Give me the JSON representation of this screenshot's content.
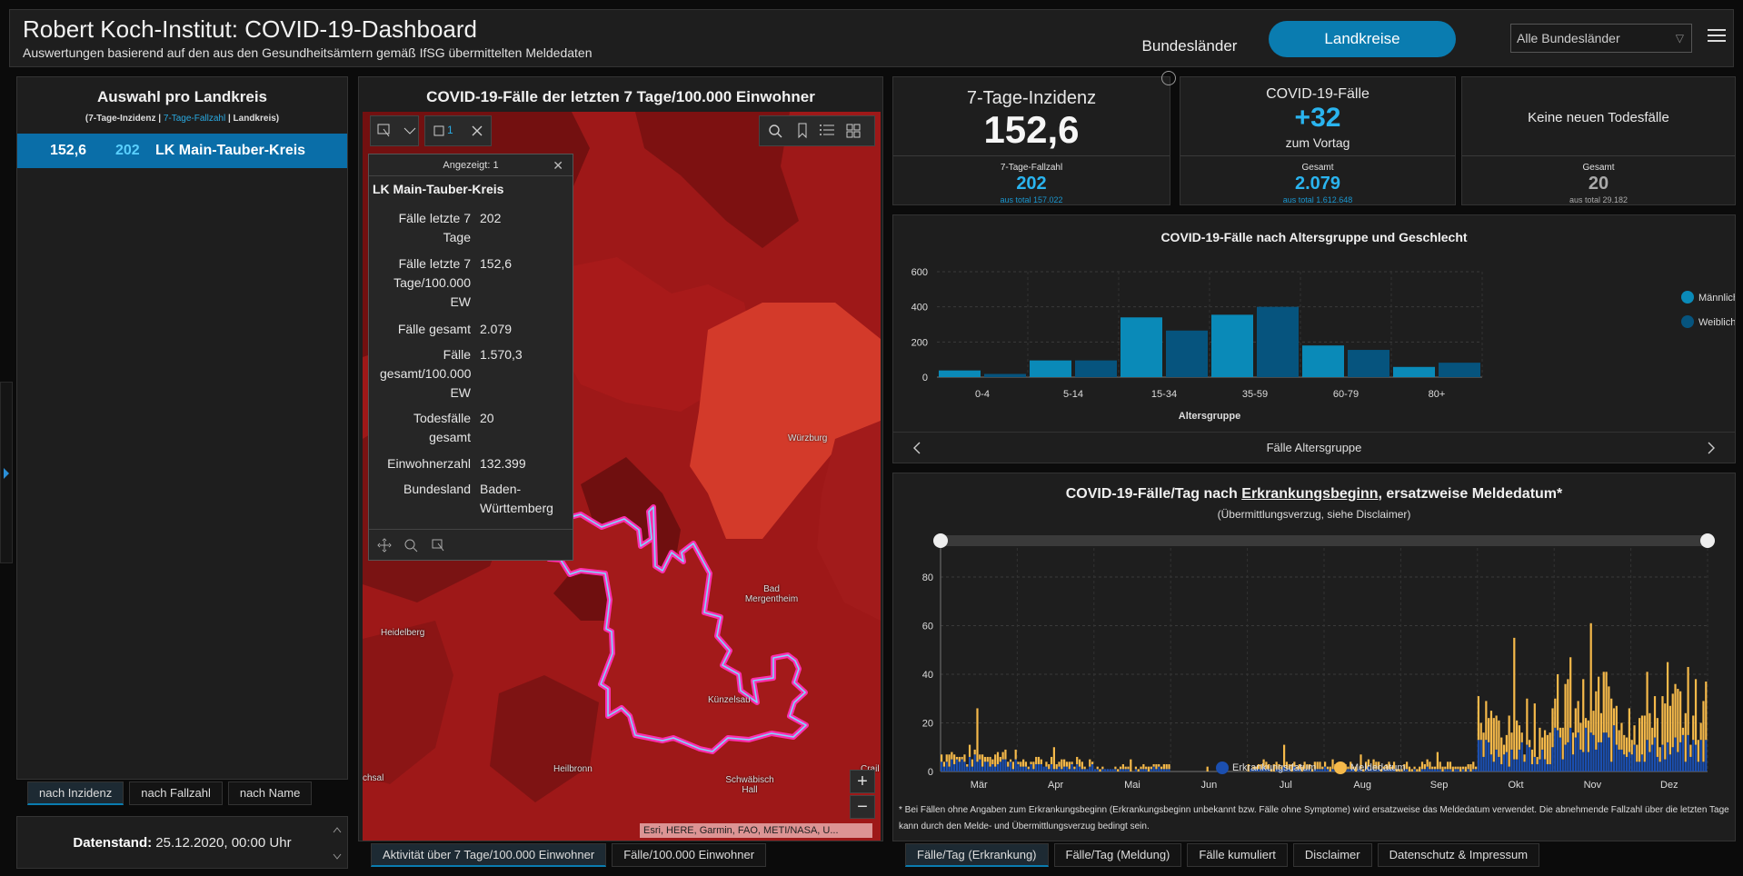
{
  "header": {
    "title": "Robert Koch-Institut: COVID-19-Dashboard",
    "subtitle": "Auswertungen basierend auf den aus den Gesundheitsämtern gemäß IfSG übermittelten Meldedaten",
    "btn_bundeslaender": "Bundesländer",
    "btn_landkreise": "Landkreise",
    "select_value": "Alle Bundesländer"
  },
  "left": {
    "title": "Auswahl pro Landkreis",
    "legend_a": "(7-Tage-Inzidenz | ",
    "legend_b": "7-Tage-Fallzahl",
    "legend_c": " | Landkreis)",
    "row": {
      "inzidenz": "152,6",
      "fallzahl": "202",
      "name": "LK Main-Tauber-Kreis"
    },
    "sort_tabs": [
      "nach Inzidenz",
      "nach Fallzahl",
      "nach Name"
    ],
    "datenstand_label": "Datenstand:",
    "datenstand_value": "25.12.2020, 00:00 Uhr"
  },
  "map": {
    "title": "COVID-19-Fälle der letzten 7 Tage/100.000 Einwohner",
    "selection_count": "1",
    "labels": {
      "wuerzburg": "Würzburg",
      "bad_mergentheim": "Bad Mergentheim",
      "heidelberg": "Heidelberg",
      "kuenzelsau": "Künzelsau",
      "heilbronn": "Heilbronn",
      "schwaebisch_hall": "Schwäbisch Hall",
      "crail": "Crail",
      "chsal": "chsal"
    },
    "attribution": "Esri, HERE, Garmin, FAO, METI/NASA, U...",
    "tabs": [
      "Aktivität über 7 Tage/100.000 Einwohner",
      "Fälle/100.000 Einwohner"
    ],
    "colors": {
      "dark": "#7a1010",
      "mid": "#9a1717",
      "light": "#c42a1e",
      "highlight": "#d8382a",
      "outline": "#ff2fb0"
    }
  },
  "popup": {
    "header": "Angezeigt: 1",
    "name": "LK Main-Tauber-Kreis",
    "rows": [
      {
        "k1": "Fälle letzte 7",
        "k2": "Tage",
        "v": "202"
      },
      {
        "k1": "Fälle letzte 7",
        "k2": "Tage/100.000",
        "k3": "EW",
        "v": "152,6"
      },
      {
        "k1": "Fälle gesamt",
        "v": "2.079"
      },
      {
        "k1": "Fälle",
        "k2": "gesamt/100.000",
        "k3": "EW",
        "v": "1.570,3"
      },
      {
        "k1": "Todesfälle",
        "k2": "gesamt",
        "v": "20"
      },
      {
        "k1": "Einwohnerzahl",
        "v": "132.399"
      },
      {
        "k1": "Bundesland",
        "v": "Baden-",
        "v2": "Württemberg"
      }
    ]
  },
  "kpi": {
    "inzidenz": {
      "title": "7-Tage-Inzidenz",
      "value": "152,6",
      "sub_label": "7-Tage-Fallzahl",
      "sub_value": "202",
      "sub_total": "aus total 157.022"
    },
    "faelle": {
      "title": "COVID-19-Fälle",
      "value": "+32",
      "suffix": "zum Vortag",
      "sub_label": "Gesamt",
      "sub_value": "2.079",
      "sub_total": "aus total 1.612.648"
    },
    "tod": {
      "title": "Keine neuen Todesfälle",
      "sub_label": "Gesamt",
      "sub_value": "20",
      "sub_total": "aus total 29.182"
    }
  },
  "age_chart": {
    "title": "COVID-19-Fälle nach Altersgruppe und Geschlecht",
    "footer": "Fälle Altersgruppe"
  },
  "daily_chart": {
    "title_a": "COVID-19-Fälle/Tag nach ",
    "title_b": "Erkrankungsbeginn",
    "title_c": ", ersatzweise Meldedatum*",
    "subtitle": "(Übermittlungsverzug, siehe Disclaimer)",
    "note": "* Bei Fällen ohne Angaben zum Erkrankungsbeginn (Erkrankungsbeginn unbekannt bzw. Fälle ohne Symptome) wird ersatzweise das Meldedatum verwendet. Die abnehmende Fallzahl über die letzten Tage kann durch den Melde- und Übermittlungsverzug bedingt sein.",
    "tabs": [
      "Fälle/Tag (Erkrankung)",
      "Fälle/Tag (Meldung)",
      "Fälle kumuliert",
      "Disclaimer",
      "Datenschutz & Impressum"
    ]
  },
  "chart_data": [
    {
      "type": "bar",
      "title": "COVID-19-Fälle nach Altersgruppe und Geschlecht",
      "xlabel": "Altersgruppe",
      "ylabel": "",
      "categories": [
        "0-4",
        "5-14",
        "15-34",
        "35-59",
        "60-79",
        "80+"
      ],
      "series": [
        {
          "name": "Männlich",
          "color": "#0a8ab8",
          "values": [
            38,
            95,
            340,
            355,
            180,
            58
          ]
        },
        {
          "name": "Weiblich",
          "color": "#06547e",
          "values": [
            18,
            95,
            265,
            400,
            155,
            82
          ]
        }
      ],
      "yticks": [
        0,
        200,
        400,
        600
      ],
      "ylim": [
        0,
        600
      ],
      "grid": true,
      "legend": "right"
    },
    {
      "type": "bar",
      "stacked": true,
      "xlabel": "",
      "ylabel": "",
      "x_ticks": [
        "Mär",
        "Apr",
        "Mai",
        "Jun",
        "Jul",
        "Aug",
        "Sep",
        "Okt",
        "Nov",
        "Dez"
      ],
      "yticks": [
        0,
        20,
        40,
        60,
        80
      ],
      "ylim": [
        0,
        80
      ],
      "grid": true,
      "legend": "bottom",
      "series": [
        {
          "name": "Erkrankungsdatum",
          "color": "#1b4fb0"
        },
        {
          "name": "Meldedatum",
          "color": "#f5b94a"
        }
      ],
      "monthly_profile": [
        {
          "month": "Mär",
          "erkrankung_typ": 4,
          "melde_typ": 3,
          "peak": 26
        },
        {
          "month": "Apr",
          "erkrankung_typ": 2,
          "melde_typ": 2,
          "peak": 10
        },
        {
          "month": "Mai",
          "erkrankung_typ": 1,
          "melde_typ": 1,
          "peak": 5
        },
        {
          "month": "Jun",
          "erkrankung_typ": 0,
          "melde_typ": 0,
          "peak": 2
        },
        {
          "month": "Jul",
          "erkrankung_typ": 1,
          "melde_typ": 2,
          "peak": 11
        },
        {
          "month": "Aug",
          "erkrankung_typ": 1,
          "melde_typ": 2,
          "peak": 7
        },
        {
          "month": "Sep",
          "erkrankung_typ": 1,
          "melde_typ": 2,
          "peak": 8
        },
        {
          "month": "Okt",
          "erkrankung_typ": 8,
          "melde_typ": 12,
          "peak": 55
        },
        {
          "month": "Nov",
          "erkrankung_typ": 11,
          "melde_typ": 18,
          "peak": 61
        },
        {
          "month": "Dez",
          "erkrankung_typ": 9,
          "melde_typ": 16,
          "peak": 45
        }
      ]
    }
  ]
}
